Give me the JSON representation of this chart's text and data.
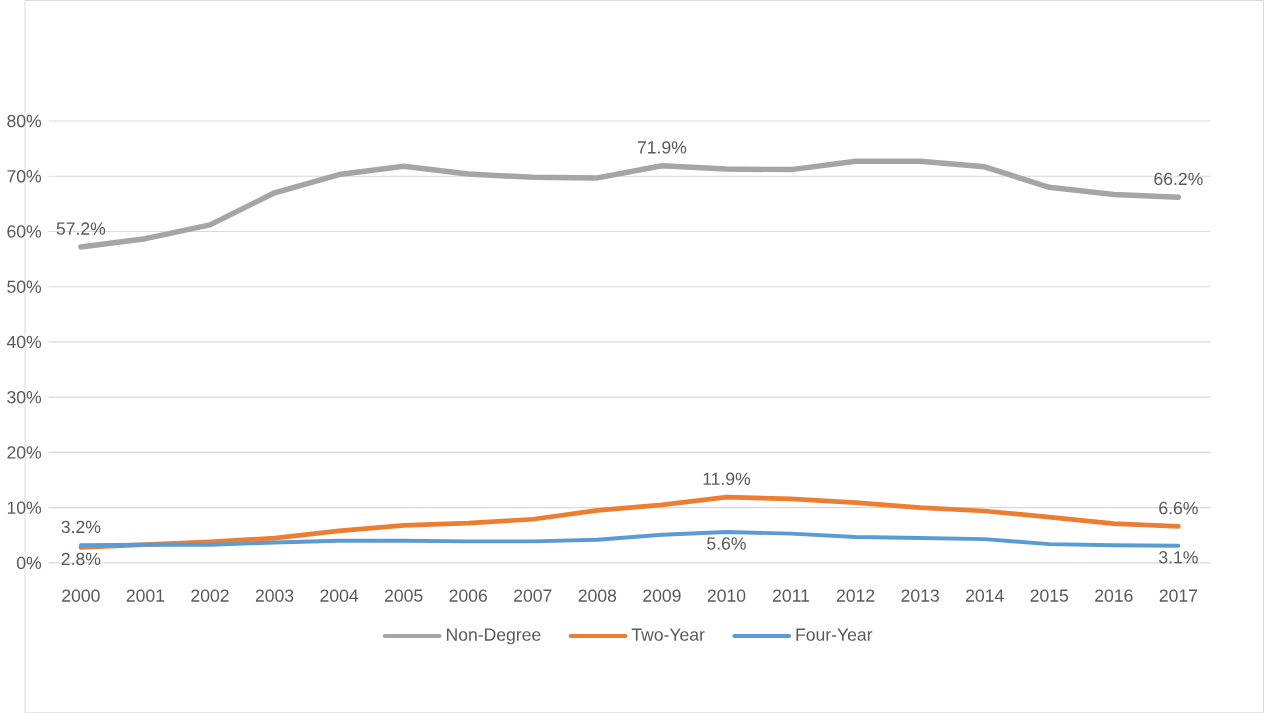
{
  "chart_data": {
    "type": "line",
    "categories": [
      "2000",
      "2001",
      "2002",
      "2003",
      "2004",
      "2005",
      "2006",
      "2007",
      "2008",
      "2009",
      "2010",
      "2011",
      "2012",
      "2013",
      "2014",
      "2015",
      "2016",
      "2017"
    ],
    "series": [
      {
        "name": "Non-Degree",
        "color": "#a5a5a5",
        "values": [
          57.2,
          58.7,
          61.2,
          67.0,
          70.3,
          71.8,
          70.4,
          69.8,
          69.7,
          71.9,
          71.3,
          71.2,
          72.7,
          72.7,
          71.7,
          68.0,
          66.7,
          66.2
        ],
        "value_labels": [
          "57.2%",
          null,
          null,
          null,
          null,
          null,
          null,
          null,
          null,
          "71.9%",
          null,
          null,
          null,
          null,
          null,
          null,
          null,
          "66.2%"
        ]
      },
      {
        "name": "Two-Year",
        "color": "#ed7d31",
        "values": [
          2.8,
          3.3,
          3.8,
          4.5,
          5.8,
          6.8,
          7.2,
          7.9,
          9.5,
          10.5,
          11.9,
          11.6,
          10.9,
          10.0,
          9.4,
          8.3,
          7.1,
          6.6
        ],
        "value_labels": [
          "2.8%",
          null,
          null,
          null,
          null,
          null,
          null,
          null,
          null,
          null,
          "11.9%",
          null,
          null,
          null,
          null,
          null,
          null,
          "6.6%"
        ]
      },
      {
        "name": "Four-Year",
        "color": "#5b9bd5",
        "values": [
          3.2,
          3.3,
          3.3,
          3.7,
          4.0,
          4.0,
          3.9,
          3.9,
          4.2,
          5.1,
          5.6,
          5.3,
          4.7,
          4.5,
          4.3,
          3.4,
          3.2,
          3.1
        ],
        "value_labels": [
          "3.2%",
          null,
          null,
          null,
          null,
          null,
          null,
          null,
          null,
          null,
          "5.6%",
          null,
          null,
          null,
          null,
          null,
          null,
          "3.1%"
        ]
      }
    ],
    "ylim": [
      0,
      80
    ],
    "yticks": [
      {
        "value": 0,
        "label": "0%"
      },
      {
        "value": 10,
        "label": "10%"
      },
      {
        "value": 20,
        "label": "20%"
      },
      {
        "value": 30,
        "label": "30%"
      },
      {
        "value": 40,
        "label": "40%"
      },
      {
        "value": 50,
        "label": "50%"
      },
      {
        "value": 60,
        "label": "60%"
      },
      {
        "value": 70,
        "label": "70%"
      },
      {
        "value": 80,
        "label": "80%"
      }
    ],
    "grid": "y",
    "legend": "bottom",
    "marker": "none",
    "line_style": "solid"
  }
}
